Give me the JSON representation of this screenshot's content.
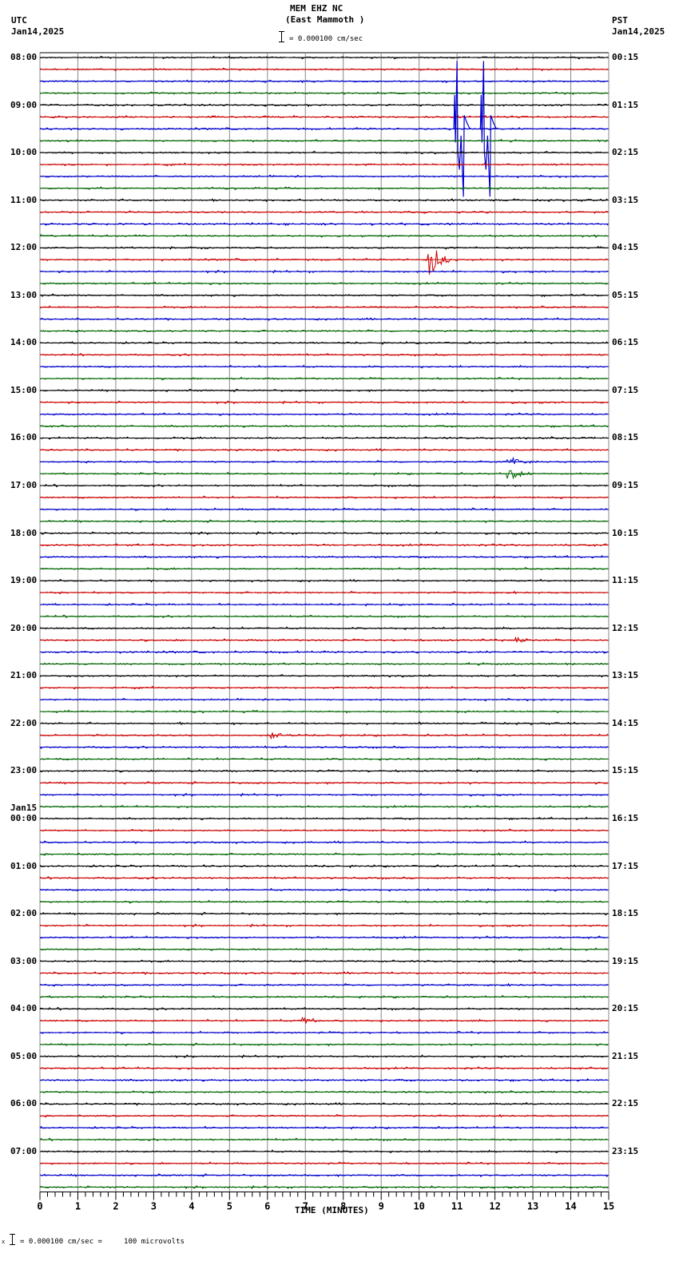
{
  "header": {
    "station": "MEM EHZ NC",
    "location": "(East Mammoth )",
    "scale_text": "= 0.000100 cm/sec",
    "left_tz": "UTC",
    "left_date": "Jan14,2025",
    "right_tz": "PST",
    "right_date": "Jan14,2025"
  },
  "footer": {
    "scale_text": "= 0.000100 cm/sec =     100 microvolts",
    "scale_prefix": "x"
  },
  "colors": {
    "trace_cycle": [
      "#000000",
      "#cc0000",
      "#0000cc",
      "#006600"
    ],
    "grid": "#888888",
    "axis": "#000000"
  },
  "chart_data": {
    "type": "line",
    "title": "MEM EHZ NC (East Mammoth ) helicorder",
    "xlabel": "TIME (MINUTES)",
    "ylabel": "",
    "xlim": [
      0,
      15
    ],
    "x_ticks": [
      0,
      1,
      2,
      3,
      4,
      5,
      6,
      7,
      8,
      9,
      10,
      11,
      12,
      13,
      14,
      15
    ],
    "traces_per_hour": 4,
    "minutes_per_trace": 15,
    "left_labels": [
      "08:00",
      "09:00",
      "10:00",
      "11:00",
      "12:00",
      "13:00",
      "14:00",
      "15:00",
      "16:00",
      "17:00",
      "18:00",
      "19:00",
      "20:00",
      "21:00",
      "22:00",
      "23:00",
      "00:00",
      "01:00",
      "02:00",
      "03:00",
      "04:00",
      "05:00",
      "06:00",
      "07:00"
    ],
    "left_date_change": {
      "label": "Jan15",
      "before_hour_index": 16
    },
    "right_labels": [
      "00:15",
      "01:15",
      "02:15",
      "03:15",
      "04:15",
      "05:15",
      "06:15",
      "07:15",
      "08:15",
      "09:15",
      "10:15",
      "11:15",
      "12:15",
      "13:15",
      "14:15",
      "15:15",
      "16:15",
      "17:15",
      "18:15",
      "19:15",
      "20:15",
      "21:15",
      "22:15",
      "23:15"
    ],
    "events": [
      {
        "trace_index": 6,
        "minute": 11.0,
        "amplitude": 5,
        "type": "spike",
        "color_index": 2,
        "note": "large blue spikes near 09:30 UTC"
      },
      {
        "trace_index": 6,
        "minute": 11.7,
        "amplitude": 5,
        "type": "spike",
        "color_index": 2
      },
      {
        "trace_index": 17,
        "minute": 10.3,
        "amplitude": 3.5,
        "type": "quake",
        "color_index": 1,
        "note": "red event near 12:15 UTC"
      },
      {
        "trace_index": 34,
        "minute": 12.4,
        "amplitude": 1.2,
        "type": "quake",
        "color_index": 2
      },
      {
        "trace_index": 35,
        "minute": 12.4,
        "amplitude": 1.3,
        "type": "quake",
        "color_index": 3
      },
      {
        "trace_index": 49,
        "minute": 12.6,
        "amplitude": 0.8,
        "type": "quake",
        "color_index": 1
      },
      {
        "trace_index": 57,
        "minute": 6.1,
        "amplitude": 0.8,
        "type": "quake",
        "color_index": 1
      },
      {
        "trace_index": 81,
        "minute": 7.0,
        "amplitude": 0.8,
        "type": "quake",
        "color_index": 1
      }
    ]
  }
}
